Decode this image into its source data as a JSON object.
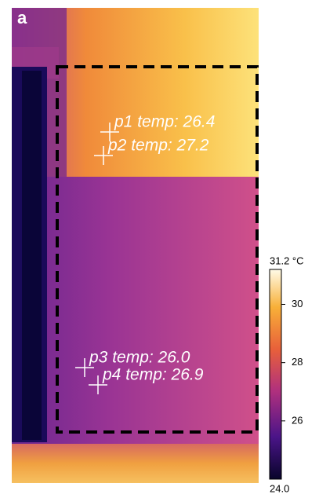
{
  "panel_label": "a",
  "points": [
    {
      "label": "p1 temp: 26.4"
    },
    {
      "label": "p2 temp: 27.2"
    },
    {
      "label": "p3 temp: 26.0"
    },
    {
      "label": "p4 temp: 26.9"
    }
  ],
  "colorbar": {
    "min": {
      "value": 24.0,
      "label": "24.0"
    },
    "max": {
      "value": 31.2,
      "label": "31.2 °C"
    },
    "ticks": [
      26,
      28,
      30
    ]
  }
}
